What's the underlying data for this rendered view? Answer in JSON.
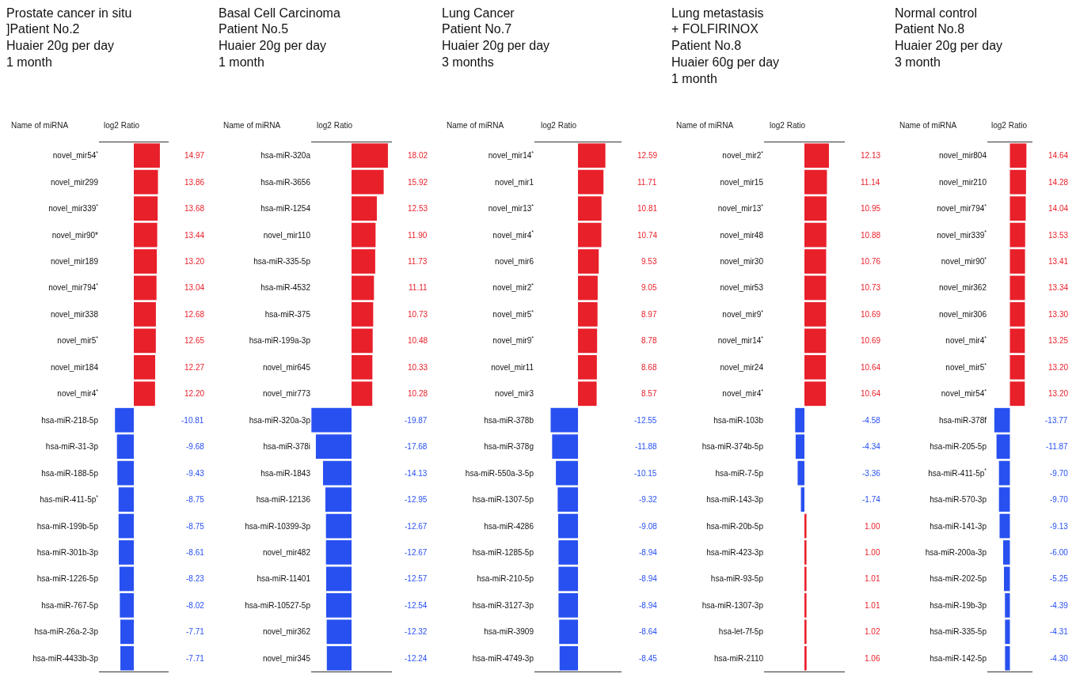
{
  "chart_data": [
    {
      "type": "bar",
      "orientation": "horizontal",
      "title": "Prostate cancer in situ\n]Patient No.2\nHuaier 20g per day\n1 month",
      "annotations": [
        "Name of miRNA",
        "log2 Ratio"
      ],
      "tick_labels": "y",
      "xlim": [
        -20,
        20
      ],
      "categories": [
        "novel_mir54$^{*}$",
        "novel_mir299",
        "novel_mir339$^{*}$",
        "novel_mir90*",
        "novel_mir189",
        "novel_mir794$^{*}$",
        "novel_mir338",
        "novel_mir5$^{*}$",
        "novel_mir184",
        "novel_mir4$^{*}$",
        "hsa-miR-218-5p",
        "hsa-miR-31-3p",
        "hsa-miR-188-5p",
        "has-miR-411-5p$^{*}$",
        "hsa-miR-199b-5p",
        "hsa-miR-301b-3p",
        "hsa-miR-1226-5p",
        "hsa-miR-767-5p",
        "hsa-miR-26a-2-3p",
        "hsa-miR-4433b-3p"
      ],
      "values": [
        14.97,
        13.86,
        13.68,
        13.44,
        13.2,
        13.04,
        12.68,
        12.65,
        12.27,
        12.2,
        -10.81,
        -9.68,
        -9.43,
        -8.75,
        -8.75,
        -8.61,
        -8.23,
        -8.02,
        -7.71,
        -7.71
      ],
      "value_labels": [
        "14.97",
        "13.86",
        "13.68",
        "13.44",
        "13.20",
        "13.04",
        "12.68",
        "12.65",
        "12.27",
        "12.20",
        "-10.81",
        "-9.68",
        "-9.43",
        "-8.75",
        "-8.75",
        "-8.61",
        "-8.23",
        "-8.02",
        "-7.71",
        "-7.71"
      ],
      "colors": [
        "#e8202a",
        "#e8202a",
        "#e8202a",
        "#e8202a",
        "#e8202a",
        "#e8202a",
        "#e8202a",
        "#e8202a",
        "#e8202a",
        "#e8202a",
        "#2850f0",
        "#2850f0",
        "#2850f0",
        "#2850f0",
        "#2850f0",
        "#2850f0",
        "#2850f0",
        "#2850f0",
        "#2850f0",
        "#2850f0"
      ]
    },
    {
      "type": "bar",
      "orientation": "horizontal",
      "title": "Basal Cell Carcinoma\nPatient No.5\nHuaier 20g per day\n1 month",
      "annotations": [
        "Name of miRNA",
        "log2 Ratio"
      ],
      "tick_labels": "y",
      "xlim": [
        -20,
        20
      ],
      "categories": [
        "hsa-miR-320a",
        "hsa-miR-3656",
        "hsa-miR-1254",
        "novel_mir110",
        "hsa-miR-335-5p",
        "hsa-miR-4532",
        "hsa-miR-375",
        "hsa-miR-199a-3p",
        "novel_mir645",
        "novel_mir773",
        "hsa-miR-320a-3p",
        "hsa-miR-378i",
        "hsa-miR-1843",
        "hsa-miR-12136",
        "hsa-miR-10399-3p",
        "novel_mir482",
        "hsa-miR-11401",
        "hsa-miR-10527-5p",
        "novel_mir362",
        "novel_mir345"
      ],
      "values": [
        18.02,
        15.92,
        12.53,
        11.9,
        11.73,
        11.11,
        10.73,
        10.48,
        10.33,
        10.28,
        -19.87,
        -17.68,
        -14.13,
        -12.95,
        -12.67,
        -12.67,
        -12.57,
        -12.54,
        -12.32,
        -12.24
      ],
      "value_labels": [
        "18.02",
        "15.92",
        "12.53",
        "11.90",
        "11.73",
        "11.11",
        "10.73",
        "10.48",
        "10.33",
        "10.28",
        "-19.87",
        "-17.68",
        "-14.13",
        "-12.95",
        "-12.67",
        "-12.67",
        "-12.57",
        "-12.54",
        "-12.32",
        "-12.24"
      ],
      "colors": [
        "#e8202a",
        "#e8202a",
        "#e8202a",
        "#e8202a",
        "#e8202a",
        "#e8202a",
        "#e8202a",
        "#e8202a",
        "#e8202a",
        "#e8202a",
        "#2850f0",
        "#2850f0",
        "#2850f0",
        "#2850f0",
        "#2850f0",
        "#2850f0",
        "#2850f0",
        "#2850f0",
        "#2850f0",
        "#2850f0"
      ]
    },
    {
      "type": "bar",
      "orientation": "horizontal",
      "title": "Lung Cancer\nPatient No.7\nHuaier 20g per day\n3 months",
      "annotations": [
        "Name of miRNA",
        "log2 Ratio"
      ],
      "tick_labels": "y",
      "xlim": [
        -20,
        20
      ],
      "categories": [
        "novel_mir14$^{*}$",
        "novel_mir1",
        "novel_mir13$^{*}$",
        "novel_mir4$^{*}$",
        "novel_mir6",
        "novel_mir2$^{*}$",
        "novel_mir5$^{*}$",
        "novel_mir9$^{*}$",
        "novel_mir11",
        "novel_mir3",
        "hsa-miR-378b",
        "hsa-miR-378g",
        "hsa-miR-550a-3-5p",
        "hsa-miR-1307-5p",
        "hsa-miR-4286",
        "hsa-miR-1285-5p",
        "hsa-miR-210-5p",
        "hsa-miR-3127-3p",
        "hsa-miR-3909",
        "hsa-miR-4749-3p"
      ],
      "values": [
        12.59,
        11.71,
        10.81,
        10.74,
        9.53,
        9.05,
        8.97,
        8.78,
        8.68,
        8.57,
        -12.55,
        -11.88,
        -10.15,
        -9.32,
        -9.08,
        -8.94,
        -8.94,
        -8.94,
        -8.64,
        -8.45
      ],
      "value_labels": [
        "12.59",
        "11.71",
        "10.81",
        "10.74",
        "9.53",
        "9.05",
        "8.97",
        "8.78",
        "8.68",
        "8.57",
        "-12.55",
        "-11.88",
        "-10.15",
        "-9.32",
        "-9.08",
        "-8.94",
        "-8.94",
        "-8.94",
        "-8.64",
        "-8.45"
      ],
      "colors": [
        "#e8202a",
        "#e8202a",
        "#e8202a",
        "#e8202a",
        "#e8202a",
        "#e8202a",
        "#e8202a",
        "#e8202a",
        "#e8202a",
        "#e8202a",
        "#2850f0",
        "#2850f0",
        "#2850f0",
        "#2850f0",
        "#2850f0",
        "#2850f0",
        "#2850f0",
        "#2850f0",
        "#2850f0",
        "#2850f0"
      ]
    },
    {
      "type": "bar",
      "orientation": "horizontal",
      "title": "Lung metastasis\n+ FOLFIRINOX\nPatient No.8\nHuaier 60g per day\n1 month",
      "annotations": [
        "Name of miRNA",
        "log2 Ratio"
      ],
      "tick_labels": "y",
      "xlim": [
        -20,
        20
      ],
      "categories": [
        "novel_mir2$^{*}$",
        "novel_mir15",
        "novel_mir13$^{*}$",
        "novel_mir48",
        "novel_mir30",
        "novel_mir53",
        "novel_mir9$^{*}$",
        "novel_mir14$^{*}$",
        "novel_mir24",
        "novel_mir4$^{*}$",
        "hsa-miR-103b",
        "hsa-miR-374b-5p",
        "hsa-miR-7-5p",
        "hsa-miR-143-3p",
        "hsa-miR-20b-5p",
        "hsa-miR-423-3p",
        "hsa-miR-93-5p",
        "hsa-miR-1307-3p",
        "hsa-let-7f-5p",
        "hsa-miR-2110"
      ],
      "values": [
        12.13,
        11.14,
        10.95,
        10.88,
        10.76,
        10.73,
        10.69,
        10.69,
        10.64,
        10.64,
        -4.58,
        -4.34,
        -3.36,
        -1.74,
        1.0,
        1.0,
        1.01,
        1.01,
        1.02,
        1.06
      ],
      "value_labels": [
        "12.13",
        "11.14",
        "10.95",
        "10.88",
        "10.76",
        "10.73",
        "10.69",
        "10.69",
        "10.64",
        "10.64",
        "-4.58",
        "-4.34",
        "-3.36",
        "-1.74",
        "1.00",
        "1.00",
        "1.01",
        "1.01",
        "1.02",
        "1.06"
      ],
      "colors": [
        "#e8202a",
        "#e8202a",
        "#e8202a",
        "#e8202a",
        "#e8202a",
        "#e8202a",
        "#e8202a",
        "#e8202a",
        "#e8202a",
        "#e8202a",
        "#2850f0",
        "#2850f0",
        "#2850f0",
        "#2850f0",
        "#e8202a",
        "#e8202a",
        "#e8202a",
        "#e8202a",
        "#e8202a",
        "#e8202a"
      ]
    },
    {
      "type": "bar",
      "orientation": "horizontal",
      "title": "Normal control\nPatient No.8\nHuaier 20g per day\n3 month",
      "annotations": [
        "Name of miRNA",
        "log2 Ratio"
      ],
      "tick_labels": "y",
      "xlim": [
        -20,
        20
      ],
      "categories": [
        "novel_mir804",
        "novel_mir210",
        "novel_mir794$^{*}$",
        "novel_mir339$^{*}$",
        "novel_mir90$^{*}$",
        "novel_mir362",
        "novel_mir306",
        "novel_mir4$^{*}$",
        "novel_mir5$^{*}$",
        "novel_mir54$^{*}$",
        "hsa-miR-378f",
        "hsa-miR-205-5p",
        "hsa-miR-411-5p$^{*}$",
        "hsa-miR-570-3p",
        "hsa-miR-141-3p",
        "hsa-miR-200a-3p",
        "hsa-miR-202-5p",
        "hsa-miR-19b-3p",
        "hsa-miR-335-5p",
        "hsa-miR-142-5p"
      ],
      "values": [
        14.64,
        14.28,
        14.04,
        13.53,
        13.41,
        13.34,
        13.3,
        13.25,
        13.2,
        13.2,
        -13.77,
        -11.87,
        -9.7,
        -9.7,
        -9.13,
        -6.0,
        -5.25,
        -4.39,
        -4.31,
        -4.3
      ],
      "value_labels": [
        "14.64",
        "14.28",
        "14.04",
        "13.53",
        "13.41",
        "13.34",
        "13.30",
        "13.25",
        "13.20",
        "13.20",
        "-13.77",
        "-11.87",
        "-9.70",
        "-9.70",
        "-9.13",
        "-6.00",
        "-5.25",
        "-4.39",
        "-4.31",
        "-4.30"
      ],
      "colors": [
        "#e8202a",
        "#e8202a",
        "#e8202a",
        "#e8202a",
        "#e8202a",
        "#e8202a",
        "#e8202a",
        "#e8202a",
        "#e8202a",
        "#e8202a",
        "#2850f0",
        "#2850f0",
        "#2850f0",
        "#2850f0",
        "#2850f0",
        "#2850f0",
        "#2850f0",
        "#2850f0",
        "#2850f0",
        "#2850f0"
      ]
    }
  ]
}
